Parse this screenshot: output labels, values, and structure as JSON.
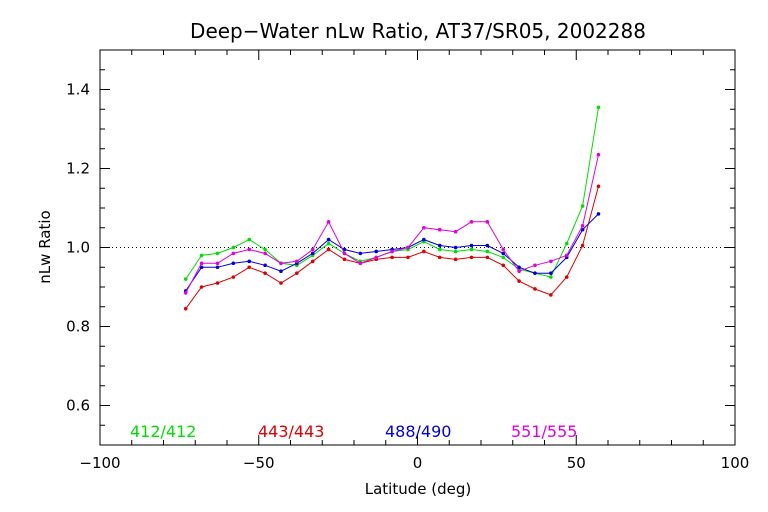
{
  "chart_data": {
    "type": "line",
    "title": "Deep−Water nLw Ratio, AT37/SR05, 2002288",
    "xlabel": "Latitude (deg)",
    "ylabel": "nLw Ratio",
    "xlim": [
      -100,
      100
    ],
    "ylim": [
      0.5,
      1.5
    ],
    "xticks": [
      -100,
      -50,
      0,
      50,
      100
    ],
    "xtick_labels": [
      "−100",
      "−50",
      "0",
      "50",
      "100"
    ],
    "yticks": [
      0.6,
      0.8,
      1.0,
      1.2,
      1.4
    ],
    "ytick_labels": [
      "0.6",
      "0.8",
      "1.0",
      "1.2",
      "1.4"
    ],
    "reference_line": 1.0,
    "grid": false,
    "legend_placement": "bottom",
    "x": [
      -73,
      -68,
      -63,
      -58,
      -53,
      -48,
      -43,
      -38,
      -33,
      -28,
      -23,
      -18,
      -13,
      -8,
      -3,
      2,
      7,
      12,
      17,
      22,
      27,
      32,
      37,
      42,
      47,
      52,
      57
    ],
    "series": [
      {
        "name": "412/412",
        "color": "#00e000",
        "values": [
          0.92,
          0.98,
          0.985,
          1.0,
          1.02,
          0.995,
          0.96,
          0.955,
          0.98,
          1.01,
          0.985,
          0.965,
          0.975,
          0.99,
          0.995,
          1.015,
          0.995,
          0.99,
          0.995,
          0.99,
          0.975,
          0.945,
          0.935,
          0.925,
          1.01,
          1.105,
          1.355
        ]
      },
      {
        "name": "443/443",
        "color": "#e00000",
        "values": [
          0.845,
          0.9,
          0.91,
          0.925,
          0.95,
          0.935,
          0.91,
          0.935,
          0.965,
          0.995,
          0.97,
          0.96,
          0.97,
          0.975,
          0.975,
          0.99,
          0.975,
          0.97,
          0.975,
          0.975,
          0.955,
          0.915,
          0.895,
          0.88,
          0.925,
          1.005,
          1.155
        ]
      },
      {
        "name": "488/490",
        "color": "#0000e0",
        "values": [
          0.89,
          0.95,
          0.95,
          0.96,
          0.965,
          0.955,
          0.94,
          0.96,
          0.985,
          1.02,
          0.995,
          0.985,
          0.99,
          0.995,
          1.0,
          1.02,
          1.005,
          1.0,
          1.005,
          1.005,
          0.985,
          0.95,
          0.935,
          0.935,
          0.975,
          1.045,
          1.085
        ]
      },
      {
        "name": "551/555",
        "color": "#e000e0",
        "values": [
          0.885,
          0.96,
          0.96,
          0.985,
          0.995,
          0.985,
          0.96,
          0.965,
          0.995,
          1.065,
          0.985,
          0.96,
          0.975,
          0.99,
          1.0,
          1.05,
          1.045,
          1.04,
          1.065,
          1.065,
          0.995,
          0.94,
          0.955,
          0.965,
          0.98,
          1.055,
          1.235
        ]
      }
    ]
  }
}
